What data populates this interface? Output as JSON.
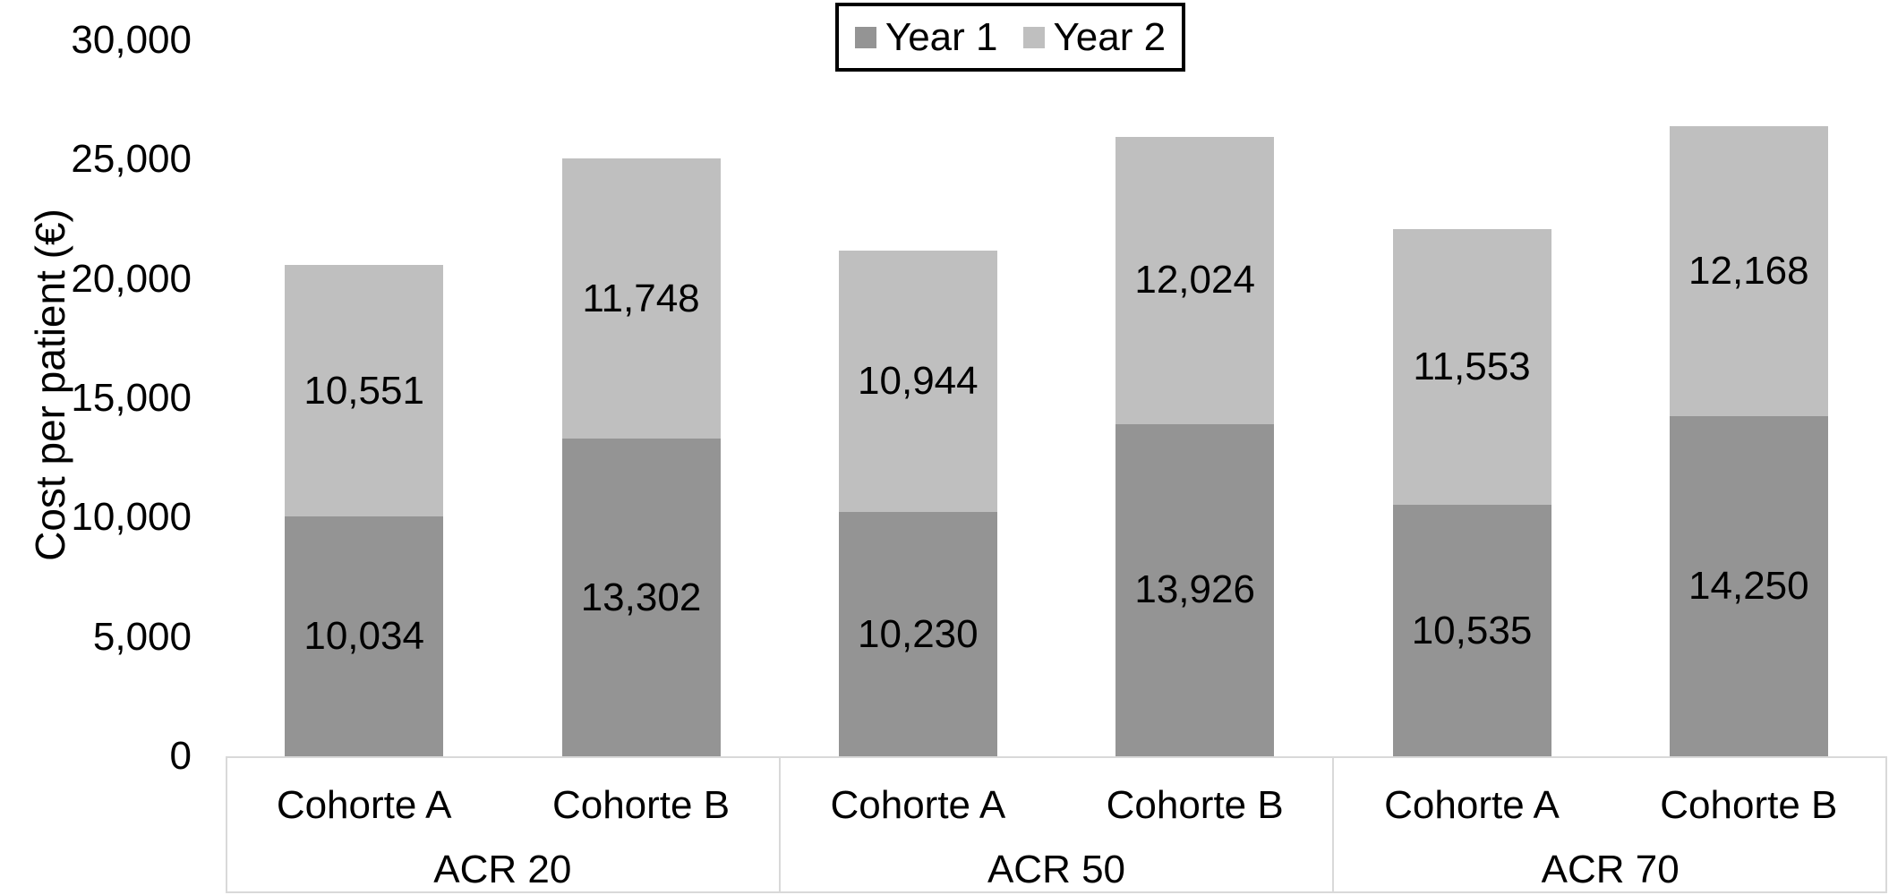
{
  "chart_data": {
    "type": "bar",
    "stacked": true,
    "title": "",
    "xlabel": "",
    "ylabel": "Cost per patient (€)",
    "ylim": [
      0,
      30000
    ],
    "grid": false,
    "legend_position": "top-center",
    "legend_border_color": "#000000",
    "ytick_values": [
      0,
      5000,
      10000,
      15000,
      20000,
      25000,
      30000
    ],
    "ytick_labels": [
      "0",
      "5,000",
      "10,000",
      "15,000",
      "20,000",
      "25,000",
      "30,000"
    ],
    "groups": [
      {
        "label": "ACR 20",
        "categories": [
          "Cohorte A",
          "Cohorte B"
        ]
      },
      {
        "label": "ACR 50",
        "categories": [
          "Cohorte A",
          "Cohorte B"
        ]
      },
      {
        "label": "ACR 70",
        "categories": [
          "Cohorte A",
          "Cohorte B"
        ]
      }
    ],
    "series": [
      {
        "name": "Year 1",
        "color": "#949494",
        "values": [
          10034,
          13302,
          10230,
          13926,
          10535,
          14250
        ],
        "labels": [
          "10,034",
          "13,302",
          "10,230",
          "13,926",
          "10,535",
          "14,250"
        ]
      },
      {
        "name": "Year 2",
        "color": "#bfbfbf",
        "values": [
          10551,
          11748,
          10944,
          12024,
          11553,
          12168
        ],
        "labels": [
          "10,551",
          "11,748",
          "10,944",
          "12,024",
          "11,553",
          "12,168"
        ]
      }
    ],
    "totals": [
      20585,
      25050,
      21174,
      25950,
      22088,
      26418
    ],
    "axis_band_border_color": "#d9d9d9",
    "text_color": "#000000"
  }
}
